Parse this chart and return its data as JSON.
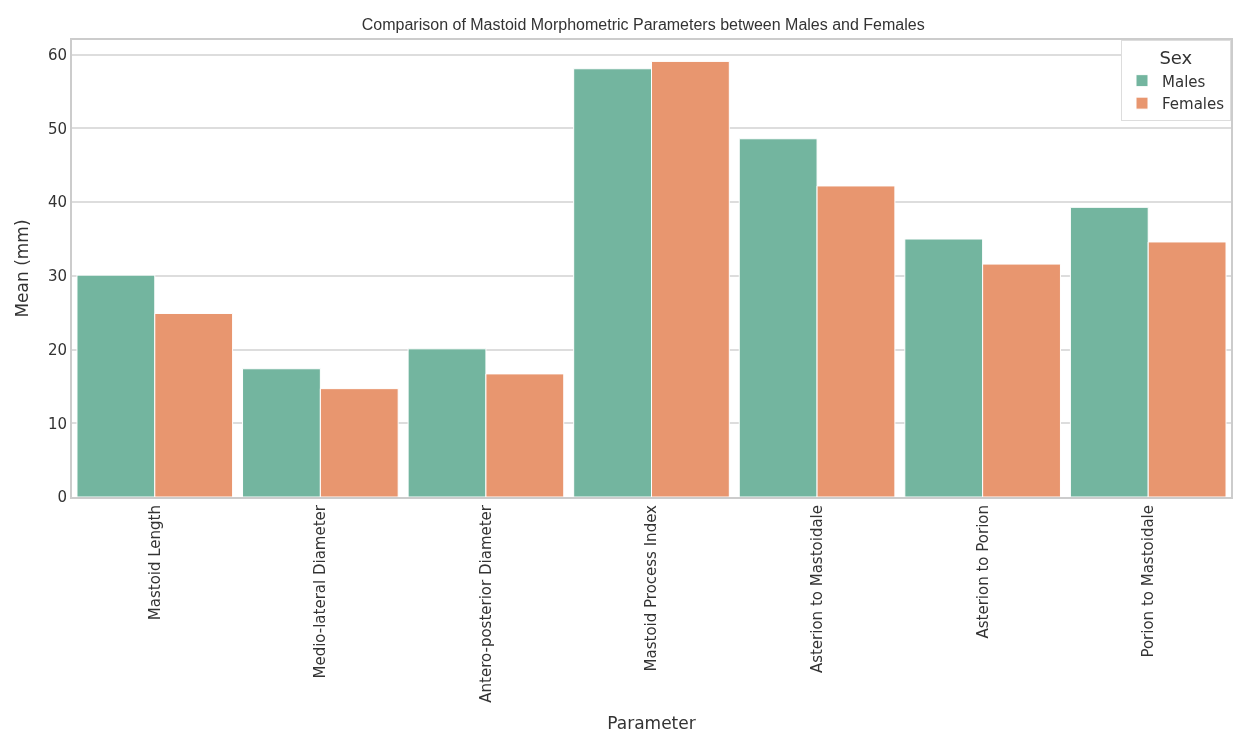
{
  "chart_data": {
    "type": "bar",
    "title": "Comparison of Mastoid Morphometric Parameters between Males and Females",
    "xlabel": "Parameter",
    "ylabel": "Mean (mm)",
    "legend_title": "Sex",
    "categories": [
      "Mastoid Length",
      "Medio-lateral Diameter",
      "Antero-posterior Diameter",
      "Mastoid Process Index",
      "Asterion to Mastoidale",
      "Asterion to Porion",
      "Porion to Mastoidale"
    ],
    "series": [
      {
        "name": "Males",
        "color": "#73b59f",
        "values": [
          30.1,
          17.4,
          20.1,
          58.1,
          48.6,
          35.0,
          39.3
        ]
      },
      {
        "name": "Females",
        "color": "#e8966f",
        "values": [
          24.9,
          14.7,
          16.7,
          59.1,
          42.2,
          31.6,
          34.6
        ]
      }
    ],
    "ylim": [
      0,
      62
    ],
    "yticks": [
      0,
      10,
      20,
      30,
      40,
      50,
      60
    ],
    "grid": "y",
    "legend": "top right"
  }
}
